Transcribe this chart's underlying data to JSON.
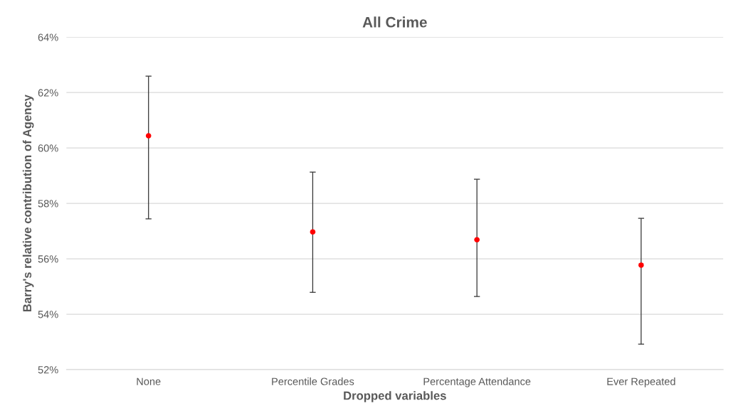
{
  "chart_data": {
    "type": "scatter",
    "title": "All Crime",
    "xlabel": "Dropped variables",
    "ylabel": "Barry's relative contribution of Agency",
    "categories": [
      "None",
      "Percentile Grades",
      "Percentage Attendance",
      "Ever Repeated"
    ],
    "series": [
      {
        "color": "#ff0000",
        "values": [
          60.44,
          56.97,
          56.69,
          55.77
        ],
        "errors": [
          [
            57.44,
            62.59
          ],
          [
            54.79,
            59.13
          ],
          [
            54.64,
            58.87
          ],
          [
            52.92,
            57.46
          ]
        ]
      }
    ],
    "ylim": [
      52,
      64
    ],
    "yticks": [
      {
        "value": 52,
        "label": "52%"
      },
      {
        "value": 54,
        "label": "54%"
      },
      {
        "value": 56,
        "label": "56%"
      },
      {
        "value": 58,
        "label": "58%"
      },
      {
        "value": 60,
        "label": "60%"
      },
      {
        "value": 62,
        "label": "62%"
      },
      {
        "value": 64,
        "label": "64%"
      }
    ],
    "grid": "y",
    "marker": "circle"
  }
}
